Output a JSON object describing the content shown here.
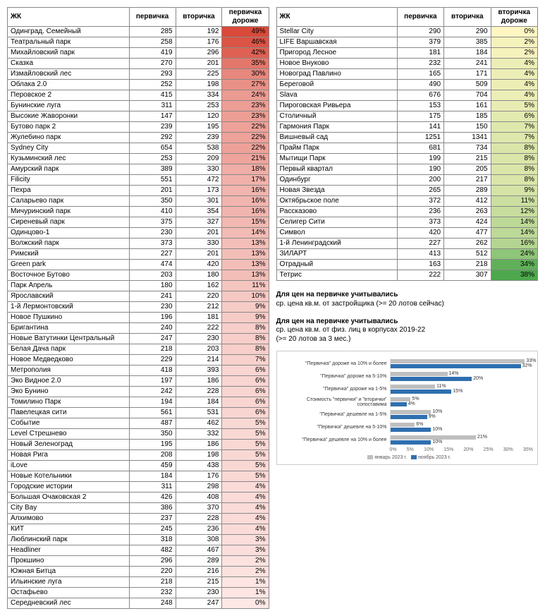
{
  "columns": {
    "name": "ЖК",
    "primary": "первичка",
    "secondary": "вторичка",
    "primary_higher": "первичка\nдороже",
    "secondary_higher": "вторичка\nдороже"
  },
  "gradient": {
    "left_max_color": "#d94a3a",
    "left_min_color": "#fde8e6",
    "right_min_color": "#fff6c2",
    "right_max_color": "#4da84d",
    "zero_color": "#ffeea0"
  },
  "left_table": [
    {
      "name": "Одинград. Семейный",
      "p": 285,
      "s": 192,
      "pct": 49
    },
    {
      "name": "Театральный парк",
      "p": 258,
      "s": 176,
      "pct": 46
    },
    {
      "name": "Михайловский парк",
      "p": 419,
      "s": 296,
      "pct": 42
    },
    {
      "name": "Сказка",
      "p": 270,
      "s": 201,
      "pct": 35
    },
    {
      "name": "Измайловский лес",
      "p": 293,
      "s": 225,
      "pct": 30
    },
    {
      "name": "Облака 2.0",
      "p": 252,
      "s": 198,
      "pct": 27
    },
    {
      "name": "Перовское 2",
      "p": 415,
      "s": 334,
      "pct": 24
    },
    {
      "name": "Бунинские луга",
      "p": 311,
      "s": 253,
      "pct": 23
    },
    {
      "name": "Высокие Жаворонки",
      "p": 147,
      "s": 120,
      "pct": 23
    },
    {
      "name": "Бутово парк 2",
      "p": 239,
      "s": 195,
      "pct": 22
    },
    {
      "name": "Жулебино парк",
      "p": 292,
      "s": 239,
      "pct": 22
    },
    {
      "name": "Sydney City",
      "p": 654,
      "s": 538,
      "pct": 22
    },
    {
      "name": "Кузьминский лес",
      "p": 253,
      "s": 209,
      "pct": 21
    },
    {
      "name": "Амурский парк",
      "p": 389,
      "s": 330,
      "pct": 18
    },
    {
      "name": "Filicity",
      "p": 551,
      "s": 472,
      "pct": 17
    },
    {
      "name": "Пехра",
      "p": 201,
      "s": 173,
      "pct": 16
    },
    {
      "name": "Саларьево парк",
      "p": 350,
      "s": 301,
      "pct": 16
    },
    {
      "name": "Мичуринский парк",
      "p": 410,
      "s": 354,
      "pct": 16
    },
    {
      "name": "Сиреневый парк",
      "p": 375,
      "s": 327,
      "pct": 15
    },
    {
      "name": "Одинцово-1",
      "p": 230,
      "s": 201,
      "pct": 14
    },
    {
      "name": "Волжский парк",
      "p": 373,
      "s": 330,
      "pct": 13
    },
    {
      "name": "Римский",
      "p": 227,
      "s": 201,
      "pct": 13
    },
    {
      "name": "Green park",
      "p": 474,
      "s": 420,
      "pct": 13
    },
    {
      "name": "Восточное Бутово",
      "p": 203,
      "s": 180,
      "pct": 13
    },
    {
      "name": "Парк Апрель",
      "p": 180,
      "s": 162,
      "pct": 11
    },
    {
      "name": "Ярославский",
      "p": 241,
      "s": 220,
      "pct": 10
    },
    {
      "name": "1-й Лермонтовский",
      "p": 230,
      "s": 212,
      "pct": 9
    },
    {
      "name": "Новое Пушкино",
      "p": 196,
      "s": 181,
      "pct": 9
    },
    {
      "name": "Бригантина",
      "p": 240,
      "s": 222,
      "pct": 8
    },
    {
      "name": "Новые Ватутинки Центральный",
      "p": 247,
      "s": 230,
      "pct": 8
    },
    {
      "name": "Белая Дача парк",
      "p": 218,
      "s": 203,
      "pct": 8
    },
    {
      "name": "Новое Медведково",
      "p": 229,
      "s": 214,
      "pct": 7
    },
    {
      "name": "Метрополия",
      "p": 418,
      "s": 393,
      "pct": 6
    },
    {
      "name": "Эко Видное 2.0",
      "p": 197,
      "s": 186,
      "pct": 6
    },
    {
      "name": "Эко Бунино",
      "p": 242,
      "s": 228,
      "pct": 6
    },
    {
      "name": "Томилино Парк",
      "p": 194,
      "s": 184,
      "pct": 6
    },
    {
      "name": "Павелецкая сити",
      "p": 561,
      "s": 531,
      "pct": 6
    },
    {
      "name": "Событие",
      "p": 487,
      "s": 462,
      "pct": 5
    },
    {
      "name": "Level Стрешнево",
      "p": 350,
      "s": 332,
      "pct": 5
    },
    {
      "name": "Новый Зеленоград",
      "p": 195,
      "s": 186,
      "pct": 5
    },
    {
      "name": "Новая Рига",
      "p": 208,
      "s": 198,
      "pct": 5
    },
    {
      "name": "iLove",
      "p": 459,
      "s": 438,
      "pct": 5
    },
    {
      "name": "Новые Котельники",
      "p": 184,
      "s": 176,
      "pct": 5
    },
    {
      "name": "Городские истории",
      "p": 311,
      "s": 298,
      "pct": 4
    },
    {
      "name": "Большая Очаковская 2",
      "p": 426,
      "s": 408,
      "pct": 4
    },
    {
      "name": "City Bay",
      "p": 386,
      "s": 370,
      "pct": 4
    },
    {
      "name": "Алхимово",
      "p": 237,
      "s": 228,
      "pct": 4
    },
    {
      "name": "КИТ",
      "p": 245,
      "s": 236,
      "pct": 4
    },
    {
      "name": "Люблинский парк",
      "p": 318,
      "s": 308,
      "pct": 3
    },
    {
      "name": "Headliner",
      "p": 482,
      "s": 467,
      "pct": 3
    },
    {
      "name": "Прокшино",
      "p": 296,
      "s": 289,
      "pct": 2
    },
    {
      "name": "Южная Битца",
      "p": 220,
      "s": 216,
      "pct": 2
    },
    {
      "name": "Ильинские луга",
      "p": 218,
      "s": 215,
      "pct": 1
    },
    {
      "name": "Остафьево",
      "p": 232,
      "s": 230,
      "pct": 1
    },
    {
      "name": "Середневский лес",
      "p": 248,
      "s": 247,
      "pct": 0
    }
  ],
  "right_table": [
    {
      "name": "Stellar City",
      "p": 290,
      "s": 290,
      "pct": 0
    },
    {
      "name": "LIFE Варшавская",
      "p": 379,
      "s": 385,
      "pct": 2
    },
    {
      "name": "Пригород Лесное",
      "p": 181,
      "s": 184,
      "pct": 2
    },
    {
      "name": "Новое Внуково",
      "p": 232,
      "s": 241,
      "pct": 4
    },
    {
      "name": "Новоград Павлино",
      "p": 165,
      "s": 171,
      "pct": 4
    },
    {
      "name": "Береговой",
      "p": 490,
      "s": 509,
      "pct": 4
    },
    {
      "name": "Slava",
      "p": 676,
      "s": 704,
      "pct": 4
    },
    {
      "name": "Пироговская Ривьера",
      "p": 153,
      "s": 161,
      "pct": 5
    },
    {
      "name": "Столичный",
      "p": 175,
      "s": 185,
      "pct": 6
    },
    {
      "name": "Гармония Парк",
      "p": 141,
      "s": 150,
      "pct": 7
    },
    {
      "name": "Вишневый сад",
      "p": 1251,
      "s": 1341,
      "pct": 7
    },
    {
      "name": "Прайм Парк",
      "p": 681,
      "s": 734,
      "pct": 8
    },
    {
      "name": "Мытищи Парк",
      "p": 199,
      "s": 215,
      "pct": 8
    },
    {
      "name": "Первый квартал",
      "p": 190,
      "s": 205,
      "pct": 8
    },
    {
      "name": "Одинбург",
      "p": 200,
      "s": 217,
      "pct": 8
    },
    {
      "name": "Новая Звезда",
      "p": 265,
      "s": 289,
      "pct": 9
    },
    {
      "name": "Октябрьское поле",
      "p": 372,
      "s": 412,
      "pct": 11
    },
    {
      "name": "Рассказово",
      "p": 236,
      "s": 263,
      "pct": 12
    },
    {
      "name": "Селигер Сити",
      "p": 373,
      "s": 424,
      "pct": 14
    },
    {
      "name": "Символ",
      "p": 420,
      "s": 477,
      "pct": 14
    },
    {
      "name": "1-й Ленинградский",
      "p": 227,
      "s": 262,
      "pct": 16
    },
    {
      "name": "ЗИЛАРТ",
      "p": 413,
      "s": 512,
      "pct": 24
    },
    {
      "name": "Отрадный",
      "p": 163,
      "s": 218,
      "pct": 34
    },
    {
      "name": "Тетрис",
      "p": 222,
      "s": 307,
      "pct": 38
    }
  ],
  "notes": {
    "line1_bold": "Для цен на первичке учитывались",
    "line1": "ср. цена кв.м. от застройщика (>= 20 лотов сейчас)",
    "line2_bold": "Для цен на первичке учитывались",
    "line2": "ср. цена кв.м. от физ. лиц в корпусах 2019-22",
    "line3": "(>= 20 лотов за 3 мес.)"
  },
  "chart": {
    "type": "bar-horizontal-grouped",
    "axis_max": 35,
    "axis_ticks": [
      "0%",
      "5%",
      "10%",
      "15%",
      "20%",
      "25%",
      "30%",
      "35%"
    ],
    "series": {
      "a": {
        "label": "январь 2023 г.",
        "color": "#bfbfbf"
      },
      "b": {
        "label": "ноябрь 2023 г.",
        "color": "#2f6fb0"
      }
    },
    "rows": [
      {
        "label": "\"Первичка\" дороже на 10% и более",
        "a": 33,
        "b": 32
      },
      {
        "label": "\"Первичка\" дороже на 5-10%",
        "a": 14,
        "b": 20
      },
      {
        "label": "\"Первичка\" дороже на 1-5%",
        "a": 11,
        "b": 15
      },
      {
        "label": "Стоимость \"первички\" и \"вторички\" сопоставима",
        "a": 5,
        "b": 4
      },
      {
        "label": "\"Первичка\" дешевле на 1-5%",
        "a": 10,
        "b": 9
      },
      {
        "label": "\"Первичка\" дешевле на 5-10%",
        "a": 6,
        "b": 10
      },
      {
        "label": "\"Первичка\" дешевле на 10% и более",
        "a": 21,
        "b": 10
      }
    ]
  }
}
